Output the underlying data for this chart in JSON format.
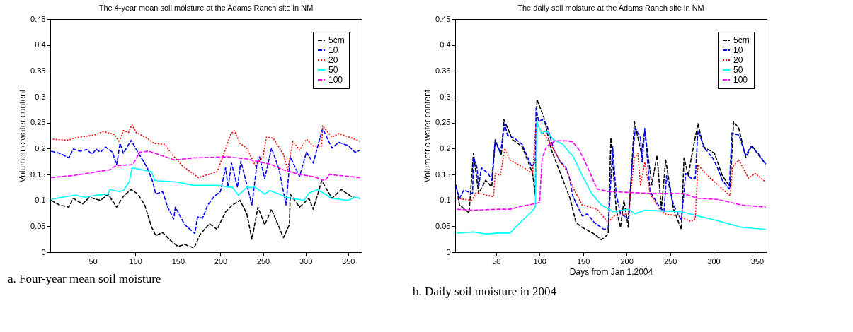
{
  "chart_data": [
    {
      "type": "line",
      "title": "The 4-year mean soil moisture at the Adams Ranch site in NM",
      "ylabel": "Volumetric water content",
      "annotations": [
        "a. Four-year mean soil moisture"
      ],
      "xlim": [
        0,
        366
      ],
      "xticks": [
        50,
        100,
        150,
        200,
        250,
        300,
        350
      ],
      "ylim": [
        0,
        0.45
      ],
      "yticks": [
        0,
        0.05,
        0.1,
        0.15,
        0.2,
        0.25,
        0.3,
        0.35,
        0.4,
        0.45
      ],
      "grid": false,
      "legend": "top right",
      "series": [
        {
          "name": "5cm",
          "color": "#000000",
          "line_style": "dashed",
          "x": [
            1,
            11,
            22,
            27,
            38,
            46,
            59,
            68,
            78,
            86,
            95,
            103,
            111,
            119,
            124,
            132,
            141,
            150,
            158,
            169,
            176,
            187,
            196,
            206,
            214,
            223,
            231,
            237,
            244,
            252,
            260,
            274,
            281,
            282,
            293,
            304,
            309,
            319,
            331,
            342,
            355,
            364
          ],
          "values": [
            0.1,
            0.091,
            0.087,
            0.104,
            0.093,
            0.106,
            0.1,
            0.112,
            0.087,
            0.108,
            0.121,
            0.112,
            0.091,
            0.049,
            0.032,
            0.038,
            0.023,
            0.011,
            0.015,
            0.008,
            0.034,
            0.055,
            0.044,
            0.078,
            0.091,
            0.1,
            0.074,
            0.025,
            0.087,
            0.053,
            0.083,
            0.028,
            0.053,
            0.112,
            0.087,
            0.104,
            0.083,
            0.138,
            0.104,
            0.121,
            0.106,
            0.104
          ]
        },
        {
          "name": "10",
          "color": "#0000ff",
          "line_style": "dashed",
          "x": [
            1,
            11,
            22,
            27,
            35,
            43,
            49,
            54,
            59,
            65,
            73,
            78,
            82,
            86,
            95,
            103,
            114,
            120,
            124,
            132,
            138,
            145,
            147,
            158,
            170,
            173,
            179,
            185,
            193,
            200,
            206,
            209,
            213,
            220,
            224,
            237,
            243,
            246,
            252,
            260,
            269,
            277,
            282,
            293,
            301,
            309,
            320,
            331,
            339,
            350,
            358,
            364
          ],
          "values": [
            0.195,
            0.191,
            0.182,
            0.199,
            0.195,
            0.198,
            0.189,
            0.199,
            0.193,
            0.203,
            0.193,
            0.169,
            0.21,
            0.191,
            0.216,
            0.193,
            0.163,
            0.138,
            0.112,
            0.117,
            0.087,
            0.064,
            0.087,
            0.053,
            0.036,
            0.068,
            0.066,
            0.091,
            0.108,
            0.117,
            0.163,
            0.125,
            0.172,
            0.125,
            0.176,
            0.091,
            0.172,
            0.184,
            0.142,
            0.201,
            0.159,
            0.091,
            0.184,
            0.146,
            0.193,
            0.172,
            0.239,
            0.201,
            0.212,
            0.206,
            0.193,
            0.197
          ]
        },
        {
          "name": "20",
          "color": "#ff0000",
          "line_style": "dotted",
          "x": [
            3,
            22,
            27,
            54,
            62,
            76,
            81,
            86,
            92,
            96,
            101,
            114,
            122,
            135,
            141,
            155,
            174,
            196,
            204,
            212,
            216,
            223,
            231,
            241,
            250,
            254,
            262,
            274,
            279,
            285,
            293,
            301,
            309,
            319,
            320,
            331,
            339,
            355,
            364
          ],
          "values": [
            0.218,
            0.216,
            0.22,
            0.227,
            0.233,
            0.227,
            0.212,
            0.235,
            0.231,
            0.246,
            0.231,
            0.22,
            0.21,
            0.208,
            0.193,
            0.167,
            0.144,
            0.155,
            0.19,
            0.227,
            0.235,
            0.21,
            0.201,
            0.167,
            0.184,
            0.222,
            0.22,
            0.189,
            0.159,
            0.214,
            0.197,
            0.218,
            0.205,
            0.205,
            0.244,
            0.222,
            0.229,
            0.22,
            0.214
          ]
        },
        {
          "name": "50",
          "color": "#00ffff",
          "line_style": "solid",
          "x": [
            1,
            14,
            30,
            41,
            54,
            68,
            70,
            81,
            86,
            93,
            96,
            108,
            119,
            123,
            146,
            169,
            196,
            214,
            221,
            231,
            241,
            252,
            258,
            269,
            277,
            298,
            304,
            314,
            331,
            350,
            358,
            364
          ],
          "values": [
            0.102,
            0.106,
            0.11,
            0.106,
            0.11,
            0.112,
            0.121,
            0.117,
            0.119,
            0.136,
            0.163,
            0.159,
            0.155,
            0.138,
            0.136,
            0.129,
            0.129,
            0.125,
            0.11,
            0.125,
            0.125,
            0.112,
            0.119,
            0.112,
            0.106,
            0.1,
            0.114,
            0.121,
            0.104,
            0.1,
            0.106,
            0.104
          ]
        },
        {
          "name": "100",
          "color": "#ff00ff",
          "line_style": "dashed",
          "x": [
            1,
            27,
            54,
            70,
            77,
            97,
            105,
            116,
            146,
            169,
            209,
            231,
            260,
            274,
            293,
            309,
            323,
            328,
            364
          ],
          "values": [
            0.144,
            0.148,
            0.155,
            0.159,
            0.167,
            0.169,
            0.193,
            0.195,
            0.178,
            0.182,
            0.184,
            0.18,
            0.169,
            0.159,
            0.15,
            0.146,
            0.138,
            0.15,
            0.144
          ]
        }
      ]
    },
    {
      "type": "line",
      "title": "The daily soil moisture at the Adams Ranch site in NM",
      "xlabel": "Days from Jan 1,2004",
      "ylabel": "Volumetric water content",
      "annotations": [
        "b. Daily soil moisture in 2004"
      ],
      "xlim": [
        3,
        361
      ],
      "xticks": [
        50,
        100,
        150,
        200,
        250,
        300,
        350
      ],
      "ylim": [
        0,
        0.45
      ],
      "yticks": [
        0,
        0.05,
        0.1,
        0.15,
        0.2,
        0.25,
        0.3,
        0.35,
        0.4,
        0.45
      ],
      "grid": false,
      "legend": "top right",
      "series": [
        {
          "name": "5cm",
          "color": "#000000",
          "line_style": "dashed",
          "x": [
            4,
            8,
            19,
            24,
            30,
            38,
            45,
            49,
            56,
            59,
            69,
            80,
            92,
            95,
            97,
            105,
            113,
            124,
            135,
            142,
            149,
            163,
            171,
            179,
            182,
            188,
            193,
            197,
            202,
            209,
            217,
            221,
            229,
            235,
            240,
            245,
            254,
            263,
            266,
            271,
            274,
            282,
            288,
            301,
            310,
            319,
            323,
            329,
            337,
            344,
            354,
            360
          ],
          "values": [
            0.13,
            0.091,
            0.076,
            0.191,
            0.113,
            0.139,
            0.126,
            0.215,
            0.187,
            0.256,
            0.217,
            0.204,
            0.152,
            0.111,
            0.295,
            0.26,
            0.2,
            0.152,
            0.104,
            0.057,
            0.048,
            0.035,
            0.024,
            0.035,
            0.221,
            0.083,
            0.048,
            0.1,
            0.048,
            0.252,
            0.191,
            0.234,
            0.13,
            0.187,
            0.083,
            0.178,
            0.083,
            0.044,
            0.182,
            0.148,
            0.178,
            0.248,
            0.204,
            0.191,
            0.148,
            0.126,
            0.252,
            0.239,
            0.182,
            0.206,
            0.182,
            0.17
          ]
        },
        {
          "name": "10",
          "color": "#0000ff",
          "line_style": "dashed",
          "x": [
            4,
            8,
            13,
            23,
            24,
            28,
            30,
            33,
            41,
            45,
            49,
            55,
            60,
            63,
            72,
            80,
            91,
            95,
            96,
            99,
            103,
            108,
            116,
            124,
            130,
            135,
            138,
            149,
            155,
            163,
            174,
            179,
            184,
            188,
            193,
            202,
            207,
            210,
            216,
            218,
            221,
            227,
            238,
            243,
            246,
            254,
            263,
            268,
            274,
            279,
            282,
            290,
            299,
            304,
            310,
            318,
            321,
            329,
            337,
            343,
            351,
            360
          ],
          "values": [
            0.126,
            0.104,
            0.12,
            0.113,
            0.182,
            0.165,
            0.126,
            0.163,
            0.152,
            0.139,
            0.217,
            0.191,
            0.248,
            0.226,
            0.219,
            0.208,
            0.165,
            0.174,
            0.278,
            0.252,
            0.256,
            0.248,
            0.2,
            0.174,
            0.165,
            0.139,
            0.109,
            0.07,
            0.074,
            0.057,
            0.044,
            0.046,
            0.204,
            0.113,
            0.074,
            0.065,
            0.182,
            0.239,
            0.221,
            0.174,
            0.239,
            0.117,
            0.087,
            0.078,
            0.148,
            0.091,
            0.061,
            0.152,
            0.143,
            0.143,
            0.234,
            0.2,
            0.182,
            0.165,
            0.139,
            0.122,
            0.23,
            0.226,
            0.187,
            0.204,
            0.191,
            0.17
          ]
        },
        {
          "name": "20",
          "color": "#ff0000",
          "line_style": "dotted",
          "x": [
            5,
            22,
            27,
            47,
            49,
            55,
            60,
            66,
            80,
            92,
            96,
            108,
            113,
            124,
            132,
            138,
            149,
            166,
            179,
            185,
            202,
            209,
            213,
            216,
            221,
            227,
            238,
            243,
            260,
            274,
            279,
            282,
            293,
            310,
            319,
            322,
            329,
            340,
            348,
            360
          ],
          "values": [
            0.104,
            0.1,
            0.115,
            0.107,
            0.152,
            0.148,
            0.2,
            0.178,
            0.165,
            0.152,
            0.248,
            0.221,
            0.208,
            0.174,
            0.156,
            0.126,
            0.091,
            0.083,
            0.057,
            0.07,
            0.074,
            0.182,
            0.191,
            0.13,
            0.174,
            0.113,
            0.083,
            0.074,
            0.07,
            0.059,
            0.065,
            0.169,
            0.148,
            0.122,
            0.109,
            0.165,
            0.178,
            0.143,
            0.152,
            0.135
          ]
        },
        {
          "name": "50",
          "color": "#00ffff",
          "line_style": "solid",
          "x": [
            5,
            24,
            38,
            52,
            66,
            80,
            91,
            95,
            97,
            102,
            108,
            116,
            127,
            135,
            138,
            149,
            160,
            171,
            185,
            202,
            210,
            221,
            263,
            282,
            304,
            332,
            360
          ],
          "values": [
            0.037,
            0.039,
            0.035,
            0.037,
            0.037,
            0.061,
            0.078,
            0.087,
            0.252,
            0.23,
            0.234,
            0.217,
            0.208,
            0.191,
            0.187,
            0.148,
            0.113,
            0.091,
            0.078,
            0.083,
            0.074,
            0.081,
            0.078,
            0.07,
            0.061,
            0.048,
            0.044
          ]
        },
        {
          "name": "100",
          "color": "#ff00ff",
          "line_style": "dashed",
          "x": [
            5,
            24,
            52,
            66,
            80,
            96,
            100,
            103,
            108,
            118,
            130,
            138,
            146,
            155,
            166,
            179,
            207,
            235,
            265,
            282,
            304,
            315,
            332,
            360
          ],
          "values": [
            0.083,
            0.081,
            0.083,
            0.083,
            0.089,
            0.094,
            0.096,
            0.182,
            0.204,
            0.215,
            0.215,
            0.213,
            0.196,
            0.165,
            0.122,
            0.117,
            0.115,
            0.113,
            0.113,
            0.104,
            0.102,
            0.098,
            0.091,
            0.087
          ]
        }
      ]
    }
  ]
}
